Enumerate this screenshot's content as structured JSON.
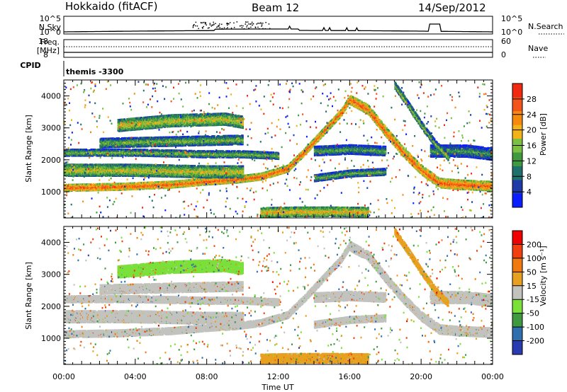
{
  "header": {
    "station": "Hokkaido (fitACF)",
    "beam": "Beam 12",
    "date": "14/Sep/2012"
  },
  "strip_panels": {
    "nsky_label": "N.Sky",
    "nsky_ticks": [
      "10^5",
      "10^0"
    ],
    "nsearch_label": "N.Search",
    "nsearch_ticks": [
      "10^5",
      "10^0"
    ],
    "freq_label_1": "Freq.",
    "freq_label_2": "[MHz]",
    "freq_ticks": [
      "18",
      "8"
    ],
    "nave_label": "Nave",
    "nave_ticks": [
      "60",
      "0"
    ],
    "cpid_label": "CPID",
    "cpid_value": "themis -3300"
  },
  "colors": {
    "power_scale": [
      "#0a1eff",
      "#1e3aa8",
      "#1f6f6a",
      "#3f9a3f",
      "#7bc040",
      "#f2b21a",
      "#f58a0f",
      "#f2541c",
      "#ef2a10"
    ],
    "velocity_scale": [
      "#2a3ab0",
      "#2f6fb0",
      "#3f9a3f",
      "#7be03a",
      "#c2c2be",
      "#e8a020",
      "#f07a10",
      "#f04010",
      "#f00000"
    ],
    "ground_scatter": "#c2c2be"
  },
  "chart_data": [
    {
      "type": "heatmap",
      "name": "power",
      "xlabel": "",
      "ylabel": "Slant Range [km]",
      "x_ticks": [
        "00:00",
        "04:00",
        "08:00",
        "12:00",
        "16:00",
        "20:00",
        "00:00"
      ],
      "xlim_hours": [
        0,
        24
      ],
      "ylim_km": [
        180,
        4500
      ],
      "y_ticks": [
        1000,
        2000,
        3000,
        4000
      ],
      "colorbar_label": "Power [dB]",
      "colorbar_ticks": [
        "28",
        "24",
        "20",
        "16",
        "12",
        "8",
        "4"
      ],
      "colorbar_range": [
        0,
        30
      ],
      "bands": [
        {
          "level": 25,
          "points": [
            [
              0.0,
              1150
            ],
            [
              3.0,
              1180
            ],
            [
              6.0,
              1250
            ],
            [
              8.0,
              1350
            ],
            [
              9.5,
              1400
            ],
            [
              11.0,
              1500
            ],
            [
              12.5,
              1750
            ],
            [
              13.5,
              2300
            ],
            [
              14.5,
              2900
            ],
            [
              15.5,
              3500
            ],
            [
              16.0,
              3950
            ]
          ]
        },
        {
          "level": 25,
          "points": [
            [
              16.0,
              3900
            ],
            [
              17.0,
              3600
            ],
            [
              18.0,
              2900
            ],
            [
              19.0,
              2250
            ],
            [
              20.0,
              1700
            ],
            [
              21.0,
              1300
            ],
            [
              22.0,
              1250
            ],
            [
              24.0,
              1200
            ]
          ]
        },
        {
          "level": 18,
          "points": [
            [
              0.0,
              1700
            ],
            [
              4.0,
              1700
            ],
            [
              8.0,
              1650
            ],
            [
              10.0,
              1650
            ]
          ]
        },
        {
          "level": 15,
          "points": [
            [
              0.0,
              2250
            ],
            [
              4.0,
              2250
            ],
            [
              8.0,
              2200
            ],
            [
              10.0,
              2200
            ],
            [
              12.0,
              2150
            ]
          ]
        },
        {
          "level": 15,
          "points": [
            [
              2.0,
              2550
            ],
            [
              6.0,
              2600
            ],
            [
              10.0,
              2650
            ]
          ]
        },
        {
          "level": 18,
          "points": [
            [
              3.0,
              3100
            ],
            [
              6.0,
              3250
            ],
            [
              9.0,
              3300
            ],
            [
              10.0,
              3200
            ]
          ]
        },
        {
          "level": 14,
          "points": [
            [
              14.0,
              1450
            ],
            [
              16.0,
              1600
            ],
            [
              18.0,
              1650
            ]
          ]
        },
        {
          "level": 13,
          "points": [
            [
              14.0,
              2300
            ],
            [
              16.0,
              2350
            ],
            [
              18.0,
              2300
            ]
          ]
        },
        {
          "level": 12,
          "points": [
            [
              20.5,
              2300
            ],
            [
              22.5,
              2300
            ],
            [
              24.0,
              2200
            ]
          ]
        },
        {
          "level": 16,
          "points": [
            [
              18.5,
              4350
            ],
            [
              19.3,
              3700
            ],
            [
              20.0,
              3100
            ],
            [
              20.8,
              2500
            ],
            [
              21.5,
              2100
            ]
          ]
        },
        {
          "level": 20,
          "points": [
            [
              11.0,
              380
            ],
            [
              13.0,
              400
            ],
            [
              15.0,
              400
            ],
            [
              17.0,
              390
            ]
          ]
        }
      ]
    },
    {
      "type": "heatmap",
      "name": "velocity",
      "xlabel": "Time UT",
      "ylabel": "Slant Range [km]",
      "x_ticks": [
        "00:00",
        "04:00",
        "08:00",
        "12:00",
        "16:00",
        "20:00",
        "00:00"
      ],
      "xlim_hours": [
        0,
        24
      ],
      "ylim_km": [
        180,
        4500
      ],
      "y_ticks": [
        1000,
        2000,
        3000,
        4000
      ],
      "colorbar_label": "Velocity [m s⁻¹]",
      "colorbar_ticks": [
        "200",
        "100",
        "50",
        "15",
        "-15",
        "-50",
        "-100",
        "-200"
      ],
      "colorbar_range": [
        -250,
        250
      ],
      "bands": [
        {
          "level": 0,
          "points": [
            [
              0.0,
              1150
            ],
            [
              3.0,
              1180
            ],
            [
              6.0,
              1250
            ],
            [
              8.0,
              1350
            ],
            [
              9.5,
              1400
            ],
            [
              11.0,
              1500
            ],
            [
              12.5,
              1750
            ],
            [
              13.5,
              2300
            ],
            [
              14.5,
              2900
            ],
            [
              15.5,
              3500
            ],
            [
              16.0,
              3950
            ]
          ]
        },
        {
          "level": 0,
          "points": [
            [
              16.0,
              3900
            ],
            [
              17.0,
              3600
            ],
            [
              18.0,
              2900
            ],
            [
              19.0,
              2250
            ],
            [
              20.0,
              1700
            ],
            [
              21.0,
              1300
            ],
            [
              22.0,
              1250
            ],
            [
              24.0,
              1200
            ]
          ]
        },
        {
          "level": 0,
          "points": [
            [
              0.0,
              1700
            ],
            [
              4.0,
              1700
            ],
            [
              8.0,
              1650
            ],
            [
              10.0,
              1650
            ]
          ]
        },
        {
          "level": 0,
          "points": [
            [
              0.0,
              2250
            ],
            [
              4.0,
              2250
            ],
            [
              8.0,
              2200
            ],
            [
              10.0,
              2200
            ],
            [
              12.0,
              2150
            ]
          ]
        },
        {
          "level": 0,
          "points": [
            [
              2.0,
              2550
            ],
            [
              6.0,
              2600
            ],
            [
              10.0,
              2650
            ]
          ]
        },
        {
          "level": -60,
          "points": [
            [
              3.0,
              3100
            ],
            [
              6.0,
              3250
            ],
            [
              9.0,
              3300
            ],
            [
              10.0,
              3200
            ]
          ]
        },
        {
          "level": 0,
          "points": [
            [
              14.0,
              1450
            ],
            [
              16.0,
              1600
            ],
            [
              18.0,
              1650
            ]
          ]
        },
        {
          "level": 0,
          "points": [
            [
              14.0,
              2300
            ],
            [
              16.0,
              2350
            ],
            [
              18.0,
              2300
            ]
          ]
        },
        {
          "level": 0,
          "points": [
            [
              20.5,
              2300
            ],
            [
              22.5,
              2300
            ],
            [
              24.0,
              2200
            ]
          ]
        },
        {
          "level": 45,
          "points": [
            [
              18.5,
              4350
            ],
            [
              19.3,
              3700
            ],
            [
              20.0,
              3100
            ],
            [
              20.8,
              2500
            ],
            [
              21.5,
              2100
            ]
          ]
        },
        {
          "level": 60,
          "points": [
            [
              11.0,
              380
            ],
            [
              13.0,
              400
            ],
            [
              15.0,
              400
            ],
            [
              17.0,
              390
            ]
          ]
        }
      ]
    }
  ]
}
